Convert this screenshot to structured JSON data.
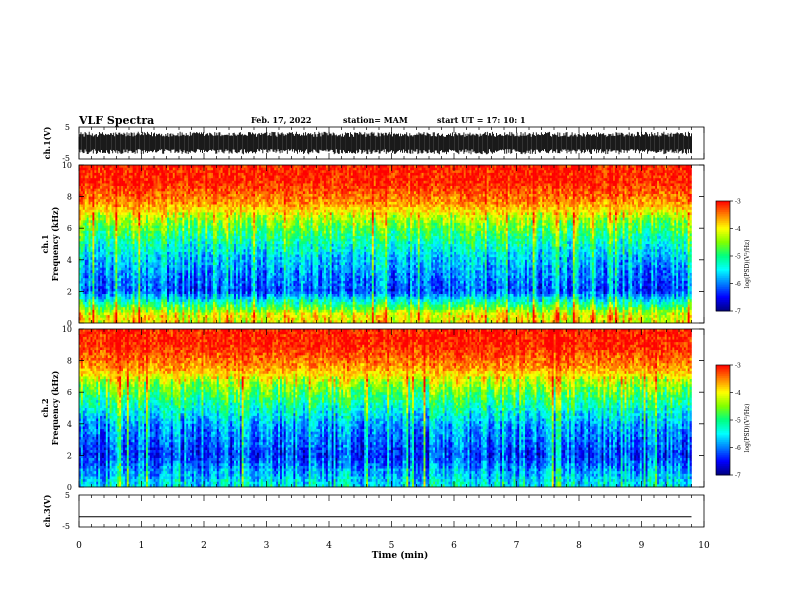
{
  "header": {
    "title": "VLF Spectra",
    "date": "Feb. 17, 2022",
    "station": "station= MAM",
    "start": "start  UT  =   17: 10: 1"
  },
  "colors": {
    "spectrogram_scale": [
      "#000080",
      "#0000ff",
      "#0080ff",
      "#00ffff",
      "#00ff80",
      "#80ff00",
      "#ffff00",
      "#ff8000",
      "#ff0000",
      "#ffffff"
    ],
    "waveform": "#000000",
    "axis": "#000000"
  },
  "chart_data": [
    {
      "type": "line",
      "panel": "ch1-waveform",
      "ylabel": "ch.1(V)",
      "ylim": [
        -5,
        5
      ],
      "yticks": [
        "5",
        "-5"
      ],
      "description_signal": "dense broadband VLF waveform",
      "amplitude_range_V": [
        -3.5,
        3.5
      ]
    },
    {
      "type": "heatmap",
      "panel": "ch1-spectrogram",
      "ylabel": "ch.1",
      "ylabel2": "Frequency (kHz)",
      "ylim": [
        0,
        10
      ],
      "yticks": [
        "0",
        "2",
        "4",
        "6",
        "8",
        "10"
      ],
      "xlim": [
        0,
        10
      ],
      "colorbar": {
        "label": "log(PSD)(V²/Hz)",
        "range": [
          -7,
          -3
        ],
        "ticks": [
          "-3",
          "-4",
          "-5",
          "-6",
          "-7"
        ]
      },
      "log_psd_profile": [
        {
          "f_kHz": 0.5,
          "log_psd": -4.0
        },
        {
          "f_kHz": 2,
          "log_psd": -6.2
        },
        {
          "f_kHz": 4,
          "log_psd": -5.7
        },
        {
          "f_kHz": 5.5,
          "log_psd": -5.0
        },
        {
          "f_kHz": 6.5,
          "log_psd": -4.4
        },
        {
          "f_kHz": 7.5,
          "log_psd": -3.6
        },
        {
          "f_kHz": 9,
          "log_psd": -3.1
        }
      ]
    },
    {
      "type": "heatmap",
      "panel": "ch2-spectrogram",
      "ylabel": "ch.2",
      "ylabel2": "Frequency (kHz)",
      "ylim": [
        0,
        10
      ],
      "yticks": [
        "0",
        "2",
        "4",
        "6",
        "8",
        "10"
      ],
      "xlim": [
        0,
        10
      ],
      "colorbar": {
        "label": "log(PSD)(V²/Hz)",
        "range": [
          -7,
          -3
        ],
        "ticks": [
          "-3",
          "-4",
          "-5",
          "-6",
          "-7"
        ]
      },
      "log_psd_profile": [
        {
          "f_kHz": 0.2,
          "log_psd": -5.5
        },
        {
          "f_kHz": 2,
          "log_psd": -6.3
        },
        {
          "f_kHz": 4,
          "log_psd": -5.8
        },
        {
          "f_kHz": 5.5,
          "log_psd": -5.0
        },
        {
          "f_kHz": 6.5,
          "log_psd": -4.4
        },
        {
          "f_kHz": 7.5,
          "log_psd": -3.6
        },
        {
          "f_kHz": 9,
          "log_psd": -3.1
        }
      ]
    },
    {
      "type": "line",
      "panel": "ch3-waveform",
      "ylabel": "ch.3(V)",
      "ylim": [
        -5,
        5
      ],
      "yticks": [
        "5",
        "-5"
      ],
      "x": [
        0,
        9.8
      ],
      "y": [
        -1.8,
        -1.8
      ]
    }
  ],
  "xaxis": {
    "label": "Time  (min)",
    "ticks": [
      "0",
      "1",
      "2",
      "3",
      "4",
      "5",
      "6",
      "7",
      "8",
      "9",
      "10"
    ],
    "xlim": [
      0,
      10
    ],
    "data_end_min": 9.8
  }
}
